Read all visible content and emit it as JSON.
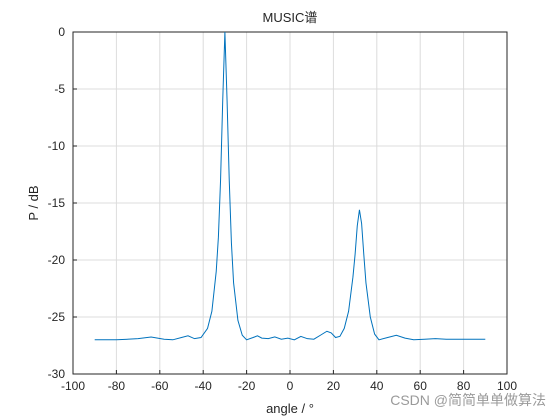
{
  "chart_data": {
    "type": "line",
    "title": "MUSIC谱",
    "x_label": "angle / °",
    "y_label": "P / dB",
    "x": [
      -90,
      -80,
      -70,
      -64,
      -58,
      -54,
      -50,
      -47,
      -44,
      -41,
      -38,
      -36,
      -34,
      -33,
      -32,
      -31,
      -30,
      -29,
      -28,
      -27,
      -26,
      -24,
      -22,
      -20,
      -17,
      -15,
      -13,
      -10,
      -7,
      -4,
      -1,
      2,
      5,
      8,
      11,
      14,
      17,
      19,
      21,
      23,
      25,
      27,
      29,
      30,
      31,
      32,
      33,
      34,
      35,
      37,
      39,
      41,
      45,
      49,
      53,
      57,
      62,
      67,
      72,
      80,
      90
    ],
    "series": [
      {
        "color": "#0072bd",
        "values": [
          -27.0,
          -27.0,
          -26.9,
          -26.75,
          -26.95,
          -27.0,
          -26.8,
          -26.65,
          -26.9,
          -26.8,
          -26.0,
          -24.5,
          -21,
          -18,
          -13,
          -6,
          0,
          -6,
          -13,
          -18.5,
          -22,
          -25.3,
          -26.6,
          -27.0,
          -26.8,
          -26.65,
          -26.85,
          -26.9,
          -26.75,
          -26.95,
          -26.85,
          -27.0,
          -26.7,
          -26.9,
          -26.95,
          -26.6,
          -26.25,
          -26.4,
          -26.8,
          -26.7,
          -26,
          -24.5,
          -21.5,
          -19.5,
          -17,
          -15.6,
          -16.8,
          -19.5,
          -22,
          -25,
          -26.5,
          -27.0,
          -26.8,
          -26.6,
          -26.85,
          -27.0,
          -26.95,
          -26.9,
          -26.95,
          -26.95,
          -26.95
        ]
      }
    ],
    "xlim": [
      -100,
      100
    ],
    "xticks": [
      -100,
      -80,
      -60,
      -40,
      -20,
      0,
      20,
      40,
      60,
      80,
      100
    ],
    "ylim": [
      -30,
      0
    ],
    "yticks": [
      -30,
      -25,
      -20,
      -15,
      -10,
      -5,
      0
    ],
    "grid": true
  },
  "watermark": "CSDN @简简单单做算法"
}
